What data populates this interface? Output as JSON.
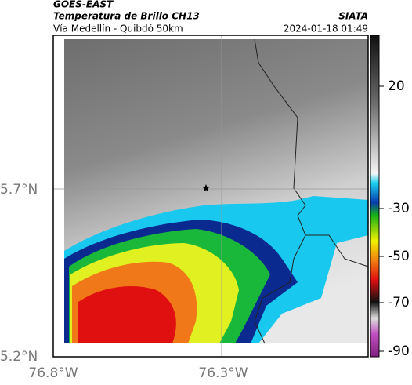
{
  "header": {
    "satellite": "GOES-EAST",
    "product": "Temperatura de Brillo CH13",
    "region": "Vía Medellín - Quibdó 50km",
    "source": "SIATA",
    "timestamp": "2024-01-18 01:49"
  },
  "axes": {
    "latitude_labels": [
      "5.7°N",
      "5.2°N"
    ],
    "longitude_labels": [
      "76.8°W",
      "76.3°W"
    ]
  },
  "colorbar": {
    "ticks": [
      20,
      -30,
      -50,
      -70,
      -90
    ]
  }
}
